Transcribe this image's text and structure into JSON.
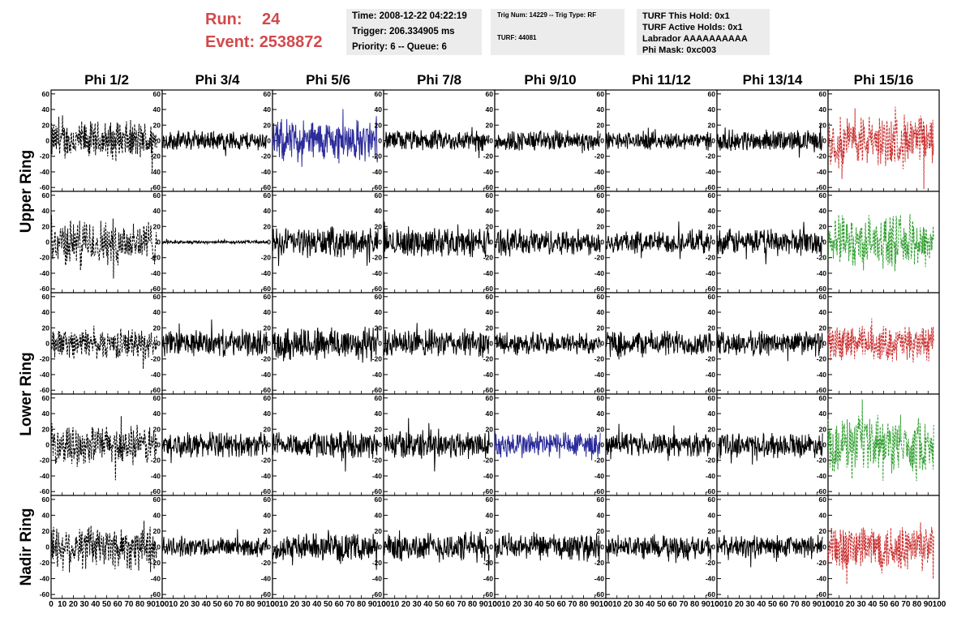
{
  "header": {
    "run_label": "Run:",
    "run_value": "24",
    "event_label": "Event:",
    "event_value": "2538872",
    "box1": {
      "time": "Time: 2008-12-22 04:22:19",
      "trigger": "Trigger: 206.334905 ms",
      "priority": "Priority: 6 -- Queue: 6"
    },
    "box2": {
      "trig": "Trig Num: 14229 -- Trig Type: RF",
      "turf": "TURF: 44081"
    },
    "box3": {
      "hold": "TURF This Hold: 0x1",
      "active": "TURF Active Holds: 0x1",
      "labrador": "Labrador AAAAAAAAAA",
      "phimask": "Phi Mask: 0xc003"
    }
  },
  "chart_data": {
    "type": "line",
    "columns": [
      "Phi 1/2",
      "Phi 3/4",
      "Phi 5/6",
      "Phi 7/8",
      "Phi 9/10",
      "Phi 11/12",
      "Phi 13/14",
      "Phi 15/16"
    ],
    "rows": [
      "Upper Ring",
      "Lower Ring",
      "Nadir Ring"
    ],
    "y_ticks": [
      "60",
      "40",
      "20",
      "0",
      "-20",
      "-40",
      "-60"
    ],
    "x_ticks": [
      "0",
      "10",
      "20",
      "30",
      "40",
      "50",
      "60",
      "70",
      "80",
      "90",
      "100"
    ],
    "xlim": [
      0,
      100
    ],
    "ylim": [
      -65,
      65
    ],
    "colors": {
      "black": "#000000",
      "blue": "#2b2b9a",
      "red": "#cc3333",
      "green": "#33a033"
    },
    "panels": [
      [
        {
          "color": "black",
          "dashed": true,
          "amp": 24
        },
        {
          "color": "black",
          "dashed": false,
          "amp": 12
        },
        {
          "color": "blue",
          "dashed": false,
          "amp": 26
        },
        {
          "color": "black",
          "dashed": false,
          "amp": 13
        },
        {
          "color": "black",
          "dashed": false,
          "amp": 13
        },
        {
          "color": "black",
          "dashed": false,
          "amp": 11
        },
        {
          "color": "black",
          "dashed": false,
          "amp": 13
        },
        {
          "color": "red",
          "dashed": true,
          "amp": 32
        }
      ],
      [
        {
          "color": "black",
          "dashed": true,
          "amp": 28
        },
        {
          "color": "black",
          "dashed": false,
          "amp": 2
        },
        {
          "color": "black",
          "dashed": false,
          "amp": 18
        },
        {
          "color": "black",
          "dashed": false,
          "amp": 18
        },
        {
          "color": "black",
          "dashed": false,
          "amp": 16
        },
        {
          "color": "black",
          "dashed": false,
          "amp": 14
        },
        {
          "color": "black",
          "dashed": false,
          "amp": 16
        },
        {
          "color": "green",
          "dashed": true,
          "amp": 32
        }
      ],
      [
        {
          "color": "black",
          "dashed": true,
          "amp": 18
        },
        {
          "color": "black",
          "dashed": false,
          "amp": 16
        },
        {
          "color": "black",
          "dashed": false,
          "amp": 22
        },
        {
          "color": "black",
          "dashed": false,
          "amp": 17
        },
        {
          "color": "black",
          "dashed": false,
          "amp": 14
        },
        {
          "color": "black",
          "dashed": false,
          "amp": 16
        },
        {
          "color": "black",
          "dashed": false,
          "amp": 15
        },
        {
          "color": "red",
          "dashed": true,
          "amp": 22
        }
      ],
      [
        {
          "color": "black",
          "dashed": true,
          "amp": 24
        },
        {
          "color": "black",
          "dashed": false,
          "amp": 15
        },
        {
          "color": "black",
          "dashed": false,
          "amp": 16
        },
        {
          "color": "black",
          "dashed": false,
          "amp": 18
        },
        {
          "color": "blue",
          "dashed": false,
          "amp": 17
        },
        {
          "color": "black",
          "dashed": false,
          "amp": 14
        },
        {
          "color": "black",
          "dashed": false,
          "amp": 15
        },
        {
          "color": "green",
          "dashed": true,
          "amp": 34
        }
      ],
      [
        {
          "color": "black",
          "dashed": true,
          "amp": 28
        },
        {
          "color": "black",
          "dashed": false,
          "amp": 12
        },
        {
          "color": "black",
          "dashed": false,
          "amp": 16
        },
        {
          "color": "black",
          "dashed": false,
          "amp": 18
        },
        {
          "color": "black",
          "dashed": false,
          "amp": 16
        },
        {
          "color": "black",
          "dashed": false,
          "amp": 14
        },
        {
          "color": "black",
          "dashed": false,
          "amp": 14
        },
        {
          "color": "red",
          "dashed": true,
          "amp": 30
        }
      ]
    ]
  }
}
